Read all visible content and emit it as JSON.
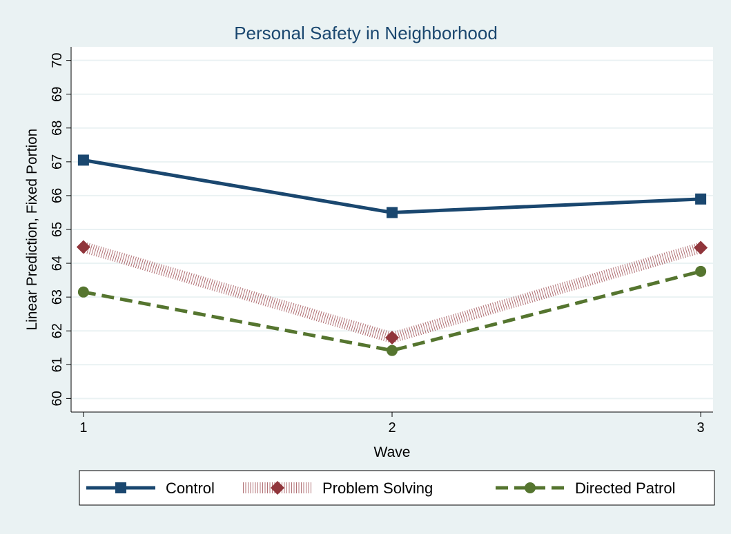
{
  "chart_data": {
    "type": "line",
    "title": "Personal Safety in Neighborhood",
    "x_label": "Wave",
    "y_label": "Linear Prediction, Fixed Portion",
    "x": [
      1,
      2,
      3
    ],
    "series": [
      {
        "name": "Control",
        "color": "#1a476f",
        "marker": "square",
        "style": "solid",
        "values": [
          67.05,
          65.5,
          65.9
        ]
      },
      {
        "name": "Problem Solving",
        "color": "#90353b",
        "marker": "diamond",
        "style": "hatched",
        "values": [
          64.48,
          61.8,
          64.46
        ]
      },
      {
        "name": "Directed Patrol",
        "color": "#55752f",
        "marker": "circle",
        "style": "dashed",
        "values": [
          63.15,
          61.42,
          63.76
        ]
      }
    ],
    "xlim": [
      0.96,
      3.04
    ],
    "xticks": [
      1,
      2,
      3
    ],
    "ylim": [
      59.6,
      70.4
    ],
    "yticks": [
      60,
      61,
      62,
      63,
      64,
      65,
      66,
      67,
      68,
      69,
      70
    ],
    "grid": true,
    "legend": "bottom"
  }
}
